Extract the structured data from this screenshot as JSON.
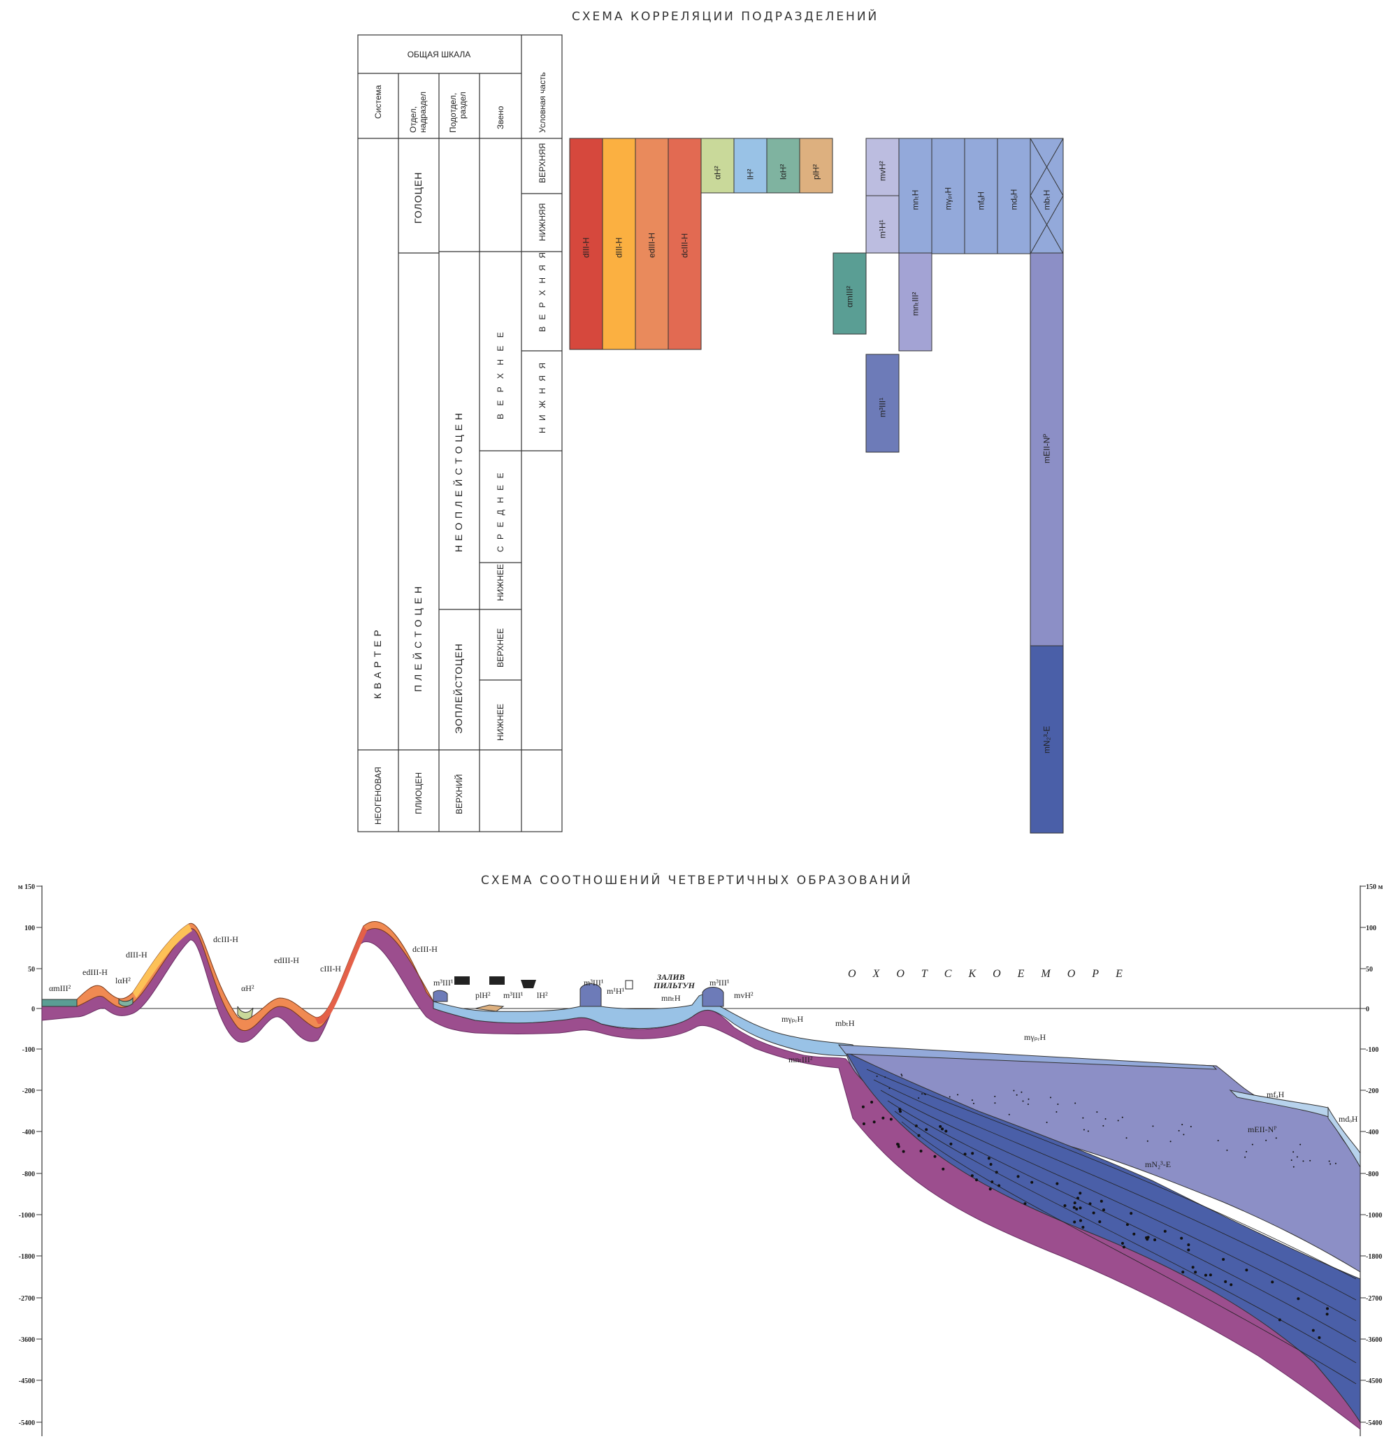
{
  "titles": {
    "correlation": "СХЕМА КОРРЕЛЯЦИИ ПОДРАЗДЕЛЕНИЙ",
    "section": "СХЕМА СООТНОШЕНИЙ ЧЕТВЕРТИЧНЫХ ОБРАЗОВАНИЙ"
  },
  "table": {
    "general_scale": "ОБЩАЯ ШКАЛА",
    "col_system": "Система",
    "col_dept1": "Отдел,",
    "col_dept2": "надраздел",
    "col_sub1": "Подотдел,",
    "col_sub2": "раздел",
    "col_link": "Звено",
    "col_cond": "Условная часть",
    "quaternary": "К В А Р Т Е Р",
    "holocene": "ГОЛОЦЕН",
    "pleistocene": "П Л Е Й С Т О Ц Е Н",
    "neopleistocene": "Н Е О П Л Е Й С Т О Ц Е Н",
    "eopleistocene": "ЭОПЛЕЙСТОЦЕН",
    "upper_link": "В Е Р Х Н Е Е",
    "middle_link": "С Р Е Д Н Е Е",
    "lower_neo": "НИЖНЕЕ",
    "upper_eo": "ВЕРХНЕЕ",
    "lower_eo": "НИЖНЕЕ",
    "holo_upper": "ВЕРХНЯЯ",
    "holo_lower": "НИЖНЯЯ",
    "pl_upper": "В Е Р Х Н Я Я",
    "pl_lower": "Н И Ж Н Я Я",
    "neogene": "НЕОГЕНОВАЯ",
    "pliocene": "ПЛИОЦЕН",
    "upper_plio": "ВЕРХНИЙ"
  },
  "blocks": [
    {
      "label": "dIII-H",
      "color": "#d6483d"
    },
    {
      "label": "dIII-H",
      "color": "#fbb041"
    },
    {
      "label": "edIII-H",
      "color": "#e98a5c"
    },
    {
      "label": "dcIII-H",
      "color": "#e26a52"
    },
    {
      "label": "αH²",
      "color": "#c9d99a"
    },
    {
      "label": "lH²",
      "color": "#99c2e6"
    },
    {
      "label": "lαH²",
      "color": "#7fb3a0"
    },
    {
      "label": "plH²",
      "color": "#ddb07f"
    },
    {
      "label": "αmIII²",
      "color": "#5a9e94"
    },
    {
      "label": "mvH²",
      "color": "#bcbde0"
    },
    {
      "label": "m¹H¹",
      "color": "#bcbde0"
    },
    {
      "label": "mnₜH",
      "color": "#93a9da"
    },
    {
      "label": "mγₚᵣH",
      "color": "#93a9da"
    },
    {
      "label": "mfₐH",
      "color": "#93a9da"
    },
    {
      "label": "mdₒH",
      "color": "#93a9da"
    },
    {
      "label": "mbₜH",
      "color": "#93a9da"
    },
    {
      "label": "mnₜIII²",
      "color": "#a3a3d4"
    },
    {
      "label": "m³III¹",
      "color": "#6d7bb8"
    },
    {
      "label": "mEII-Nᴾ",
      "color": "#8c8fc6"
    },
    {
      "label": "mN₂³-E",
      "color": "#4a5fa8"
    }
  ],
  "section": {
    "sea_label": "О Х О Т С К О Е     М О Р Е",
    "bay_label_1": "ЗАЛИВ",
    "bay_label_2": "ПИЛЬТУН",
    "axis_left": [
      "м 150",
      "100",
      "50",
      "0",
      "-100",
      "-200",
      "-400",
      "-800",
      "-1000",
      "-1800",
      "-2700",
      "-3600",
      "-4500",
      "-5400"
    ],
    "axis_right": [
      "150 м",
      "100",
      "50",
      "0",
      "-100",
      "-200",
      "-400",
      "-800",
      "-1000",
      "-1800",
      "-2700",
      "-3600",
      "-4500",
      "-5400"
    ],
    "labels": [
      "αmIII²",
      "edIII-H",
      "lαH²",
      "dIII-H",
      "dcIII-H",
      "αH²",
      "edIII-H",
      "cIII-H",
      "dcIII-H",
      "m³III¹",
      "plH²",
      "m³III¹",
      "lH²",
      "m³III¹",
      "m¹H¹",
      "mnₜH",
      "m³III¹",
      "mvH²",
      "mγₚᵣH",
      "mbₜH",
      "mnₜIII²",
      "mγₚᵣH",
      "mfₐH",
      "mdₒH",
      "mEII-Nᴾ",
      "mN₂³-E"
    ],
    "colors": {
      "basement": "#9c4e8e",
      "upper": "#93a9da",
      "deep": "#4a5fa8",
      "mid": "#8c8fc6"
    }
  }
}
